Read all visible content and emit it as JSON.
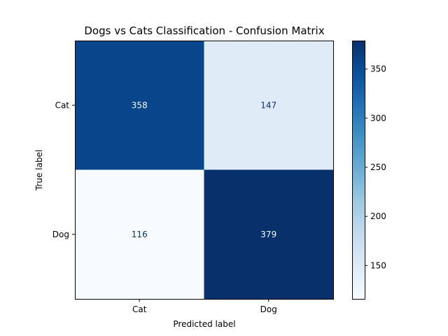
{
  "chart_data": {
    "type": "heatmap",
    "title": "Dogs vs Cats Classification - Confusion Matrix",
    "xlabel": "Predicted label",
    "ylabel": "True label",
    "x_categories": [
      "Cat",
      "Dog"
    ],
    "y_categories": [
      "Cat",
      "Dog"
    ],
    "values": [
      [
        358,
        147
      ],
      [
        116,
        379
      ]
    ],
    "colormap": "Blues",
    "colorbar": {
      "range": [
        116,
        379
      ],
      "ticks": [
        150,
        200,
        250,
        300,
        350
      ],
      "tick_labels": [
        "150",
        "200",
        "250",
        "300",
        "350"
      ]
    },
    "grid": false
  }
}
